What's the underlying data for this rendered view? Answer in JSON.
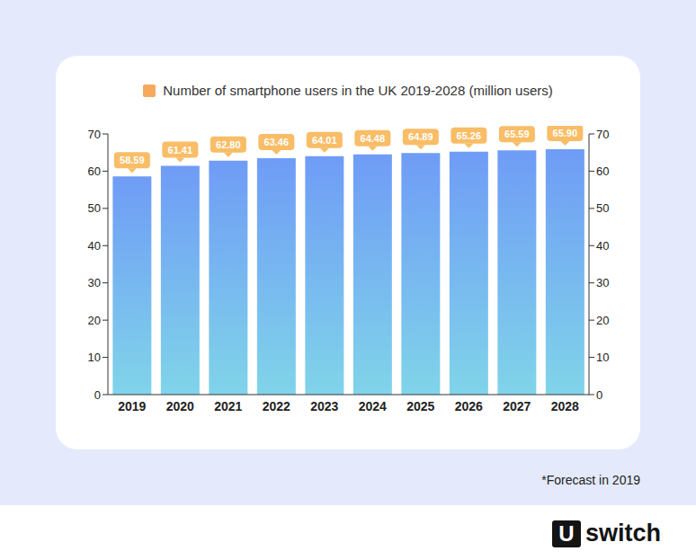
{
  "chart_data": {
    "type": "bar",
    "series": [
      {
        "name": "Number of smartphone users in the UK 2019-2028 (million users)",
        "color": "#6f9cf6",
        "values": [
          58.59,
          61.41,
          62.8,
          63.46,
          64.01,
          64.48,
          64.89,
          65.26,
          65.59,
          65.9
        ]
      }
    ],
    "categories": [
      "2019",
      "2020",
      "2021",
      "2022",
      "2023",
      "2024",
      "2025",
      "2026",
      "2027",
      "2028"
    ],
    "value_labels": [
      "58.59",
      "61.41",
      "62.80",
      "63.46",
      "64.01",
      "64.48",
      "64.89",
      "65.26",
      "65.59",
      "65.90"
    ],
    "ylim": [
      0,
      70
    ],
    "yticks": [
      0,
      10,
      20,
      30,
      40,
      50,
      60,
      70
    ],
    "y2lim": [
      0,
      70
    ],
    "y2ticks": [
      0,
      10,
      20,
      30,
      40,
      50,
      60,
      70
    ],
    "data_labels": true,
    "legend": "top",
    "grid": false,
    "annotations": [
      "*Forecast in 2019"
    ],
    "logo": [
      "U",
      "switch"
    ]
  }
}
